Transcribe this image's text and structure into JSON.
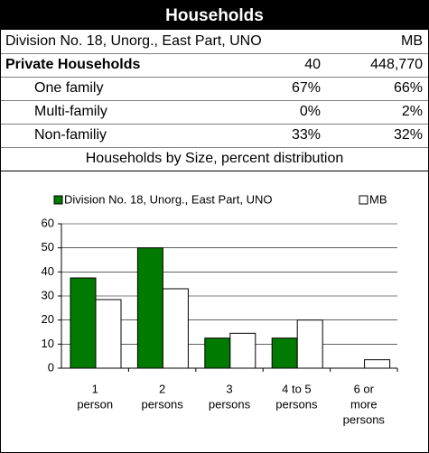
{
  "header": {
    "title": "Households"
  },
  "table": {
    "rows": [
      {
        "label": "Division No. 18, Unorg., East Part, UNO",
        "cells": [
          "MB"
        ]
      },
      {
        "label": "Private Households",
        "cells": [
          "40",
          "448,770"
        ],
        "bold": true
      },
      {
        "label": "One family",
        "cells": [
          "67%",
          "66%"
        ],
        "indent": true
      },
      {
        "label": "Multi-family",
        "cells": [
          "0%",
          "2%"
        ],
        "indent": true
      },
      {
        "label": "Non-familiy",
        "cells": [
          "33%",
          "32%"
        ],
        "indent": true
      }
    ]
  },
  "chart_data": {
    "type": "bar",
    "title": "Households by Size, percent distribution",
    "categories": [
      [
        "1",
        "person"
      ],
      [
        "2",
        "persons"
      ],
      [
        "3",
        "persons"
      ],
      [
        "4 to 5",
        "persons"
      ],
      [
        "6 or",
        "more",
        "persons"
      ]
    ],
    "series": [
      {
        "name": "Division No. 18, Unorg., East Part, UNO",
        "color": "#007a00",
        "values": [
          37.5,
          50,
          12.5,
          12.5,
          0
        ]
      },
      {
        "name": "MB",
        "color": "#ffffff",
        "values": [
          28.5,
          33,
          14.5,
          20,
          3.5
        ]
      }
    ],
    "ylim": [
      0,
      60
    ],
    "yticks": [
      0,
      10,
      20,
      30,
      40,
      50,
      60
    ],
    "grid": true
  }
}
